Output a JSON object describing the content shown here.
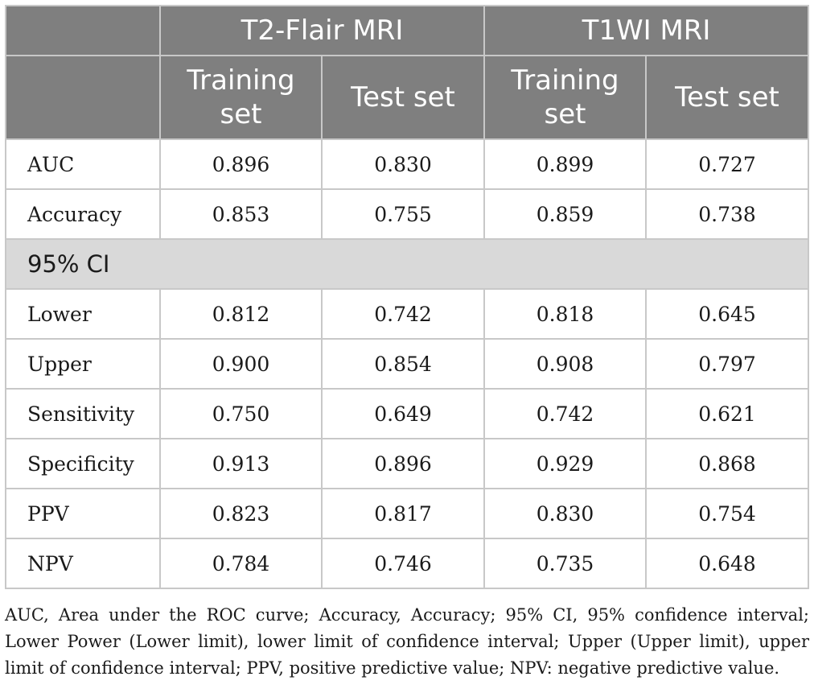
{
  "header": {
    "groups": [
      "T2-Flair MRI",
      "T1WI MRI"
    ],
    "subheaders": [
      "Training set",
      "Test set",
      "Training set",
      "Test set"
    ]
  },
  "rows_top": [
    {
      "label": "AUC",
      "values": [
        "0.896",
        "0.830",
        "0.899",
        "0.727"
      ]
    },
    {
      "label": "Accuracy",
      "values": [
        "0.853",
        "0.755",
        "0.859",
        "0.738"
      ]
    }
  ],
  "section_label": "95% CI",
  "rows_bottom": [
    {
      "label": "Lower",
      "values": [
        "0.812",
        "0.742",
        "0.818",
        "0.645"
      ]
    },
    {
      "label": "Upper",
      "values": [
        "0.900",
        "0.854",
        "0.908",
        "0.797"
      ]
    },
    {
      "label": "Sensitivity",
      "values": [
        "0.750",
        "0.649",
        "0.742",
        "0.621"
      ]
    },
    {
      "label": "Specificity",
      "values": [
        "0.913",
        "0.896",
        "0.929",
        "0.868"
      ]
    },
    {
      "label": "PPV",
      "values": [
        "0.823",
        "0.817",
        "0.830",
        "0.754"
      ]
    },
    {
      "label": "NPV",
      "values": [
        "0.784",
        "0.746",
        "0.735",
        "0.648"
      ]
    }
  ],
  "footnote": "AUC, Area under the ROC curve; Accuracy, Accuracy; 95% CI, 95% confidence interval; Lower Power (Lower limit), lower limit of confidence interval; Upper (Upper limit), upper limit of confidence interval; PPV, positive predictive value; NPV: negative predictive value.",
  "colors": {
    "header_bg": "#7f7f7f",
    "section_bg": "#d9d9d9",
    "border": "#c8c8c8"
  }
}
